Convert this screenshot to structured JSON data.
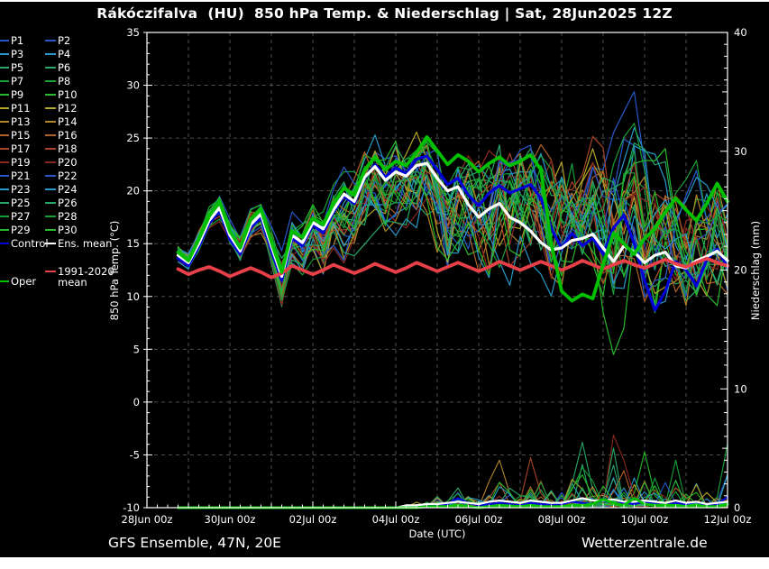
{
  "title": "Rákóczifalva  (HU)  850 hPa Temp. & Niederschlag | Sat, 28Jun2025 12Z",
  "footer": {
    "left": "GFS Ensemble, 47N, 20E",
    "right": "Wetterzentrale.de"
  },
  "colors": {
    "background": "#000000",
    "margin": "#ffffff",
    "frame": "#ffffff",
    "grid": "#4f4f4f",
    "control": "#0000d8",
    "ens_mean": "#ffffff",
    "oper": "#00c000",
    "clim_mean": "#e84048",
    "member_palette": [
      "#2858c8",
      "#2898c8",
      "#28a868",
      "#18a038",
      "#28b828",
      "#b4a428",
      "#b08428",
      "#b06028",
      "#a84428",
      "#8c2820"
    ]
  },
  "legend": {
    "member_labels": [
      "P1",
      "P2",
      "P3",
      "P4",
      "P5",
      "P6",
      "P7",
      "P8",
      "P9",
      "P10",
      "P11",
      "P12",
      "P13",
      "P14",
      "P15",
      "P16",
      "P17",
      "P18",
      "P19",
      "P20",
      "P21",
      "P22",
      "P23",
      "P24",
      "P25",
      "P26",
      "P27",
      "P28",
      "P29",
      "P30"
    ],
    "extras": [
      {
        "label": "Control",
        "color": "#0000d8",
        "col": 0,
        "y": 268
      },
      {
        "label": "Ens. mean",
        "color": "#ffffff",
        "col": 1,
        "y": 268
      },
      {
        "label": "1991-2020 mean",
        "color": "#e84048",
        "col": 1,
        "y": 299
      },
      {
        "label": "Oper",
        "color": "#00c000",
        "col": 0,
        "y": 310
      }
    ]
  },
  "chart_data": {
    "type": "line",
    "title": "Rákóczifalva (HU) 850 hPa Temp. & Niederschlag | Sat, 28Jun2025 12Z",
    "xlabel": "Date (UTC)",
    "x_unit": "days since 28Jun2025 00UTC",
    "x_range": [
      0,
      14
    ],
    "x_tick_labels": [
      "28Jun 00z",
      "30Jun 00z",
      "02Jul 00z",
      "04Jul 00z",
      "06Jul 00z",
      "08Jul 00z",
      "10Jul 00z",
      "12Jul 00z"
    ],
    "x_tick_positions": [
      0,
      2,
      4,
      6,
      8,
      10,
      12,
      14
    ],
    "temp_axis": {
      "label": "850 hPa Temp. (°C)",
      "min": -10,
      "max": 35,
      "tick_step": 5,
      "tick_labels": [
        "35",
        "30",
        "25",
        "20",
        "15",
        "10",
        "5",
        "0",
        "-5",
        "-10"
      ]
    },
    "precip_axis": {
      "label": "Niederschlag (mm)",
      "min": 0,
      "max": 40,
      "tick_step": 10,
      "tick_labels": [
        "40",
        "30",
        "20",
        "10",
        "0"
      ]
    },
    "x": [
      0.75,
      1,
      1.25,
      1.5,
      1.75,
      2,
      2.25,
      2.5,
      2.75,
      3,
      3.25,
      3.5,
      3.75,
      4,
      4.25,
      4.5,
      4.75,
      5,
      5.25,
      5.5,
      5.75,
      6,
      6.25,
      6.5,
      6.75,
      7,
      7.25,
      7.5,
      7.75,
      8,
      8.25,
      8.5,
      8.75,
      9,
      9.25,
      9.5,
      9.75,
      10,
      10.25,
      10.5,
      10.75,
      11,
      11.25,
      11.5,
      11.75,
      12,
      12.25,
      12.5,
      12.75,
      13,
      13.25,
      13.5,
      13.75,
      14
    ],
    "series": [
      {
        "name": "Ens. mean",
        "color": "#ffffff",
        "width": 3.2,
        "temp": [
          13.9,
          13.2,
          15.0,
          17.2,
          18.4,
          15.8,
          14.3,
          16.8,
          17.8,
          14.8,
          11.9,
          15.8,
          15.1,
          17.0,
          16.4,
          18.2,
          19.7,
          19.0,
          21.3,
          22.3,
          21.0,
          21.8,
          21.4,
          22.4,
          22.6,
          21.2,
          20.0,
          20.4,
          18.7,
          17.5,
          18.3,
          18.8,
          17.5,
          17.0,
          16.2,
          15.1,
          14.4,
          14.6,
          15.3,
          15.5,
          15.9,
          14.6,
          13.3,
          14.8,
          14.2,
          13.2,
          13.9,
          14.2,
          12.9,
          12.7,
          13.4,
          13.8,
          14.3,
          13.4
        ],
        "precip": [
          0,
          0,
          0,
          0,
          0,
          0,
          0,
          0,
          0,
          0,
          0,
          0,
          0,
          0,
          0,
          0,
          0,
          0,
          0,
          0,
          0,
          0,
          0.2,
          0.2,
          0.3,
          0.3,
          0.4,
          0.5,
          0.4,
          0.3,
          0.5,
          0.6,
          0.5,
          0.4,
          0.6,
          0.5,
          0.4,
          0.4,
          0.6,
          0.8,
          0.6,
          0.6,
          0.7,
          0.5,
          0.5,
          0.6,
          0.5,
          0.4,
          0.6,
          0.4,
          0.5,
          0.3,
          0.4,
          0.5
        ]
      },
      {
        "name": "Control",
        "color": "#0000d8",
        "width": 3.2,
        "temp": [
          13.6,
          12.9,
          14.7,
          16.9,
          18.1,
          15.4,
          14.0,
          16.5,
          17.5,
          14.3,
          11.5,
          15.5,
          14.8,
          16.8,
          16.0,
          18.0,
          19.5,
          18.8,
          21.2,
          22.5,
          21.3,
          22.2,
          21.6,
          23.0,
          23.3,
          22.0,
          20.6,
          21.2,
          19.6,
          18.6,
          19.8,
          20.5,
          19.8,
          20.2,
          20.6,
          19.3,
          16.5,
          14.5,
          16.0,
          14.8,
          15.5,
          14.0,
          16.5,
          17.7,
          15.0,
          11.5,
          8.7,
          10.5,
          13.3,
          12.5,
          11.0,
          13.5,
          14.5,
          12.8
        ],
        "precip": [
          0,
          0,
          0,
          0,
          0,
          0,
          0,
          0,
          0,
          0,
          0,
          0,
          0,
          0,
          0,
          0,
          0,
          0,
          0,
          0,
          0,
          0,
          0.1,
          0.1,
          0.2,
          0.2,
          0.3,
          0.8,
          0.4,
          0.2,
          0.3,
          0.4,
          0.3,
          0.2,
          0.4,
          0.3,
          0.2,
          0.3,
          0.5,
          0.4,
          0.3,
          0.6,
          0.4,
          0.4,
          0.3,
          0.5,
          0.3,
          0.2,
          0.4,
          0.3,
          0.5,
          0.2,
          0.3,
          0.9
        ]
      },
      {
        "name": "Oper",
        "color": "#00c000",
        "width": 3.8,
        "temp": [
          14.2,
          13.4,
          15.4,
          17.6,
          19.0,
          16.2,
          14.6,
          17.3,
          18.3,
          15.2,
          12.3,
          16.2,
          15.6,
          17.4,
          16.8,
          18.8,
          20.3,
          19.6,
          22.0,
          23.2,
          22.0,
          22.8,
          22.4,
          23.6,
          25.1,
          23.8,
          22.5,
          23.4,
          22.8,
          21.8,
          22.6,
          23.2,
          22.4,
          22.8,
          23.4,
          22.0,
          15.0,
          10.5,
          9.6,
          10.2,
          9.8,
          13.0,
          16.0,
          15.0,
          14.0,
          15.5,
          16.4,
          18.0,
          19.3,
          18.2,
          17.2,
          18.8,
          20.7,
          19.0
        ],
        "precip": [
          0,
          0,
          0,
          0,
          0,
          0,
          0,
          0,
          0,
          0,
          0,
          0,
          0,
          0,
          0,
          0,
          0,
          0,
          0,
          0,
          0,
          0,
          0,
          0,
          0.1,
          0.1,
          0.1,
          0.2,
          0.1,
          0,
          0.1,
          0.2,
          0.15,
          0.1,
          0.2,
          0.1,
          0.1,
          0.1,
          0.2,
          0.2,
          0.3,
          0.7,
          0.4,
          0.2,
          0.8,
          0.3,
          0.2,
          0.2,
          0.2,
          0.1,
          0.2,
          0.1,
          0.1,
          0.3
        ]
      },
      {
        "name": "1991-2020 mean",
        "color": "#e84048",
        "width": 3.8,
        "temp": [
          12.6,
          12.1,
          12.5,
          12.8,
          12.4,
          11.9,
          12.3,
          12.7,
          12.3,
          11.8,
          12.2,
          12.9,
          12.5,
          12.1,
          12.5,
          13.0,
          12.6,
          12.2,
          12.6,
          13.1,
          12.7,
          12.3,
          12.7,
          13.2,
          12.8,
          12.4,
          12.8,
          13.2,
          12.8,
          12.4,
          12.8,
          13.3,
          12.9,
          12.5,
          12.9,
          13.3,
          12.9,
          12.5,
          12.9,
          13.4,
          13.0,
          12.6,
          13.0,
          13.4,
          13.0,
          12.7,
          13.1,
          13.5,
          13.1,
          12.8,
          13.2,
          13.6,
          13.2,
          12.9
        ],
        "precip": null
      }
    ],
    "ensemble": {
      "member_count": 30,
      "temp_envelope_min": [
        13.0,
        12.3,
        14.0,
        15.8,
        16.8,
        14.5,
        13.0,
        15.3,
        16.0,
        12.8,
        9.0,
        12.5,
        12.0,
        13.5,
        11.3,
        13.5,
        11.4,
        13.0,
        14.5,
        15.5,
        14.5,
        15.0,
        15.5,
        16.0,
        16.5,
        13.0,
        9.3,
        12.0,
        12.5,
        11.0,
        8.7,
        10.0,
        8.9,
        12.0,
        11.5,
        10.5,
        9.5,
        9.0,
        10.0,
        9.0,
        9.5,
        8.0,
        4.5,
        6.5,
        8.0,
        7.0,
        6.5,
        7.5,
        8.0,
        7.0,
        7.5,
        8.0,
        8.5,
        8.5
      ],
      "temp_envelope_max": [
        15.0,
        14.3,
        16.5,
        18.8,
        19.8,
        17.5,
        16.0,
        18.5,
        19.5,
        17.0,
        14.5,
        18.0,
        17.5,
        19.5,
        19.0,
        21.0,
        22.5,
        22.0,
        24.0,
        25.5,
        24.5,
        25.5,
        25.0,
        26.2,
        26.5,
        25.5,
        24.5,
        25.5,
        25.0,
        24.0,
        25.0,
        27.0,
        26.0,
        26.5,
        27.0,
        26.0,
        25.0,
        24.5,
        25.0,
        25.5,
        26.5,
        26.0,
        27.5,
        28.0,
        29.4,
        25.5,
        23.5,
        24.0,
        22.5,
        22.0,
        23.0,
        22.0,
        23.5,
        20.8
      ],
      "precip_envelope_max": [
        0,
        0,
        0,
        0,
        0,
        0,
        0,
        0,
        0,
        0,
        0,
        0,
        0,
        0,
        0,
        0,
        0,
        0,
        0,
        0,
        0,
        0,
        0.3,
        0.5,
        0.8,
        1.2,
        1.5,
        2.4,
        1.5,
        1.2,
        2.5,
        4.0,
        2.3,
        1.5,
        4.2,
        2.5,
        2.0,
        1.6,
        3.0,
        5.5,
        3.0,
        2.5,
        6.1,
        4.5,
        3.5,
        4.7,
        3.0,
        2.2,
        4.0,
        2.5,
        3.3,
        2.0,
        1.5,
        5.4
      ],
      "overrides": [
        {
          "member": 0,
          "field": "temp",
          "start": 41,
          "values": [
            22.0,
            25.5,
            27.5,
            29.4,
            22.5,
            14.5
          ]
        },
        {
          "member": 9,
          "field": "temp",
          "start": 41,
          "values": [
            8.5,
            4.5,
            7.0
          ]
        },
        {
          "member": 19,
          "field": "precip",
          "start": 42,
          "values": [
            6.1,
            4.0,
            1.0
          ]
        },
        {
          "member": 13,
          "field": "precip",
          "start": 30,
          "values": [
            2.2,
            4.0,
            1.2
          ]
        },
        {
          "member": 5,
          "field": "precip",
          "start": 38,
          "values": [
            2.0,
            5.5,
            1.5
          ]
        },
        {
          "member": 16,
          "field": "precip",
          "start": 33,
          "values": [
            0.5,
            4.2,
            1.2
          ]
        },
        {
          "member": 9,
          "field": "precip",
          "start": 45,
          "values": [
            4.7,
            1.0
          ]
        },
        {
          "member": 7,
          "field": "precip",
          "start": 48,
          "values": [
            4.0
          ]
        },
        {
          "member": 7,
          "field": "precip",
          "start": 53,
          "values": [
            5.4
          ]
        },
        {
          "member": 0,
          "field": "precip",
          "start": 53,
          "values": [
            2.8
          ]
        }
      ]
    }
  }
}
